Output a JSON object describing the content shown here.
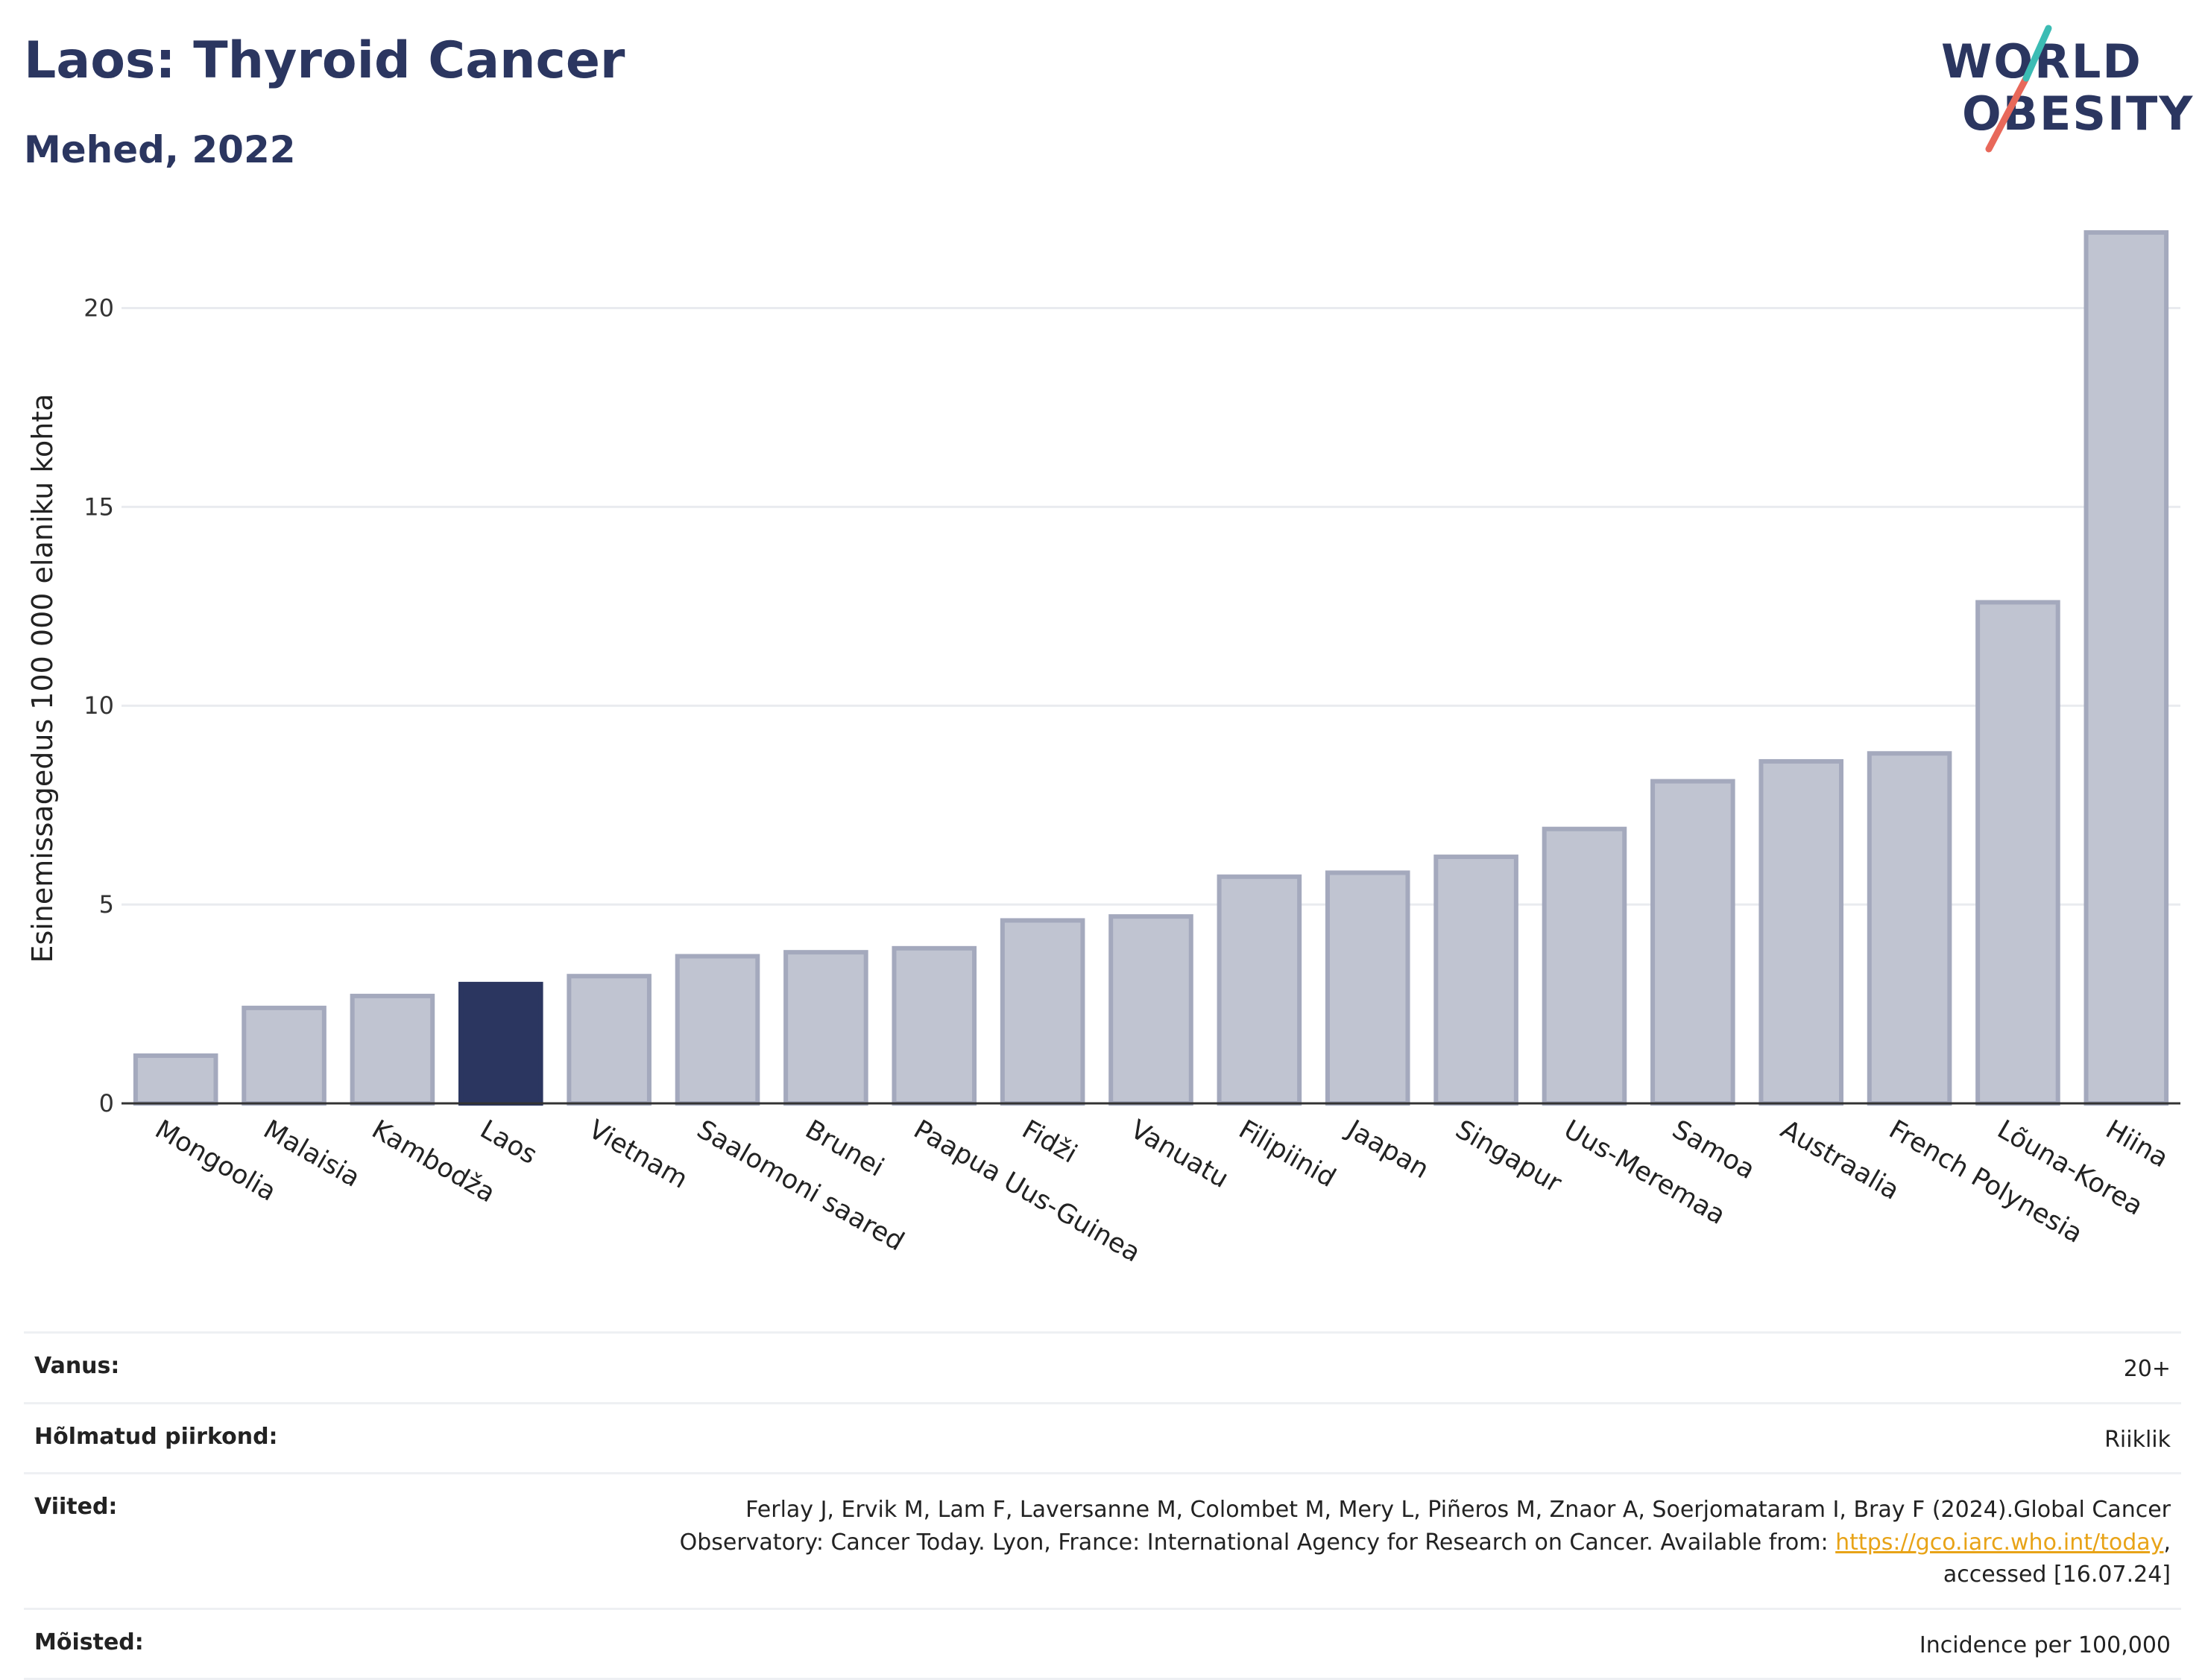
{
  "header": {
    "title": "Laos: Thyroid Cancer",
    "subtitle": "Mehed, 2022",
    "logo_line1": "WORLD",
    "logo_line2": "OBESITY"
  },
  "chart_data": {
    "type": "bar",
    "categories": [
      "Mongoolia",
      "Malaisia",
      "Kambodža",
      "Laos",
      "Vietnam",
      "Saalomoni saared",
      "Brunei",
      "Paapua Uus-Guinea",
      "Fidži",
      "Vanuatu",
      "Filipiinid",
      "Jaapan",
      "Singapur",
      "Uus-Meremaa",
      "Samoa",
      "Austraalia",
      "French Polynesia",
      "Lõuna-Korea",
      "Hiina"
    ],
    "values": [
      1.2,
      2.4,
      2.7,
      3.0,
      3.2,
      3.7,
      3.8,
      3.9,
      4.6,
      4.7,
      5.7,
      5.8,
      6.2,
      6.9,
      8.1,
      8.6,
      8.8,
      12.6,
      21.9
    ],
    "highlight": "Laos",
    "ylabel": "Esinemissagedus 100 000 elaniku kohta",
    "yticks": [
      0,
      5,
      10,
      15,
      20
    ],
    "ylim": [
      0,
      22.5
    ],
    "grid": true,
    "colors": {
      "bar": "#c0c4d1",
      "bar_edge": "#a4a9bd",
      "highlight": "#2b3660",
      "grid": "#e9ebef",
      "axis": "#333333"
    }
  },
  "info": {
    "age_label": "Vanus:",
    "age_value": "20+",
    "region_label": "Hõlmatud piirkond:",
    "region_value": "Riiklik",
    "refs_label": "Viited:",
    "refs_text_1": "Ferlay J, Ervik M, Lam F, Laversanne M, Colombet M, Mery L, Piñeros M, Znaor A, Soerjomataram I, Bray F (2024).Global Cancer",
    "refs_text_2": "Observatory: Cancer Today. Lyon, France: International Agency for Research on Cancer. Available from:",
    "refs_link": "https://gco.iarc.who.int/today",
    "refs_text_3": "accessed [16.07.24]",
    "def_label": "Mõisted:",
    "def_value": "Incidence per 100,000"
  }
}
